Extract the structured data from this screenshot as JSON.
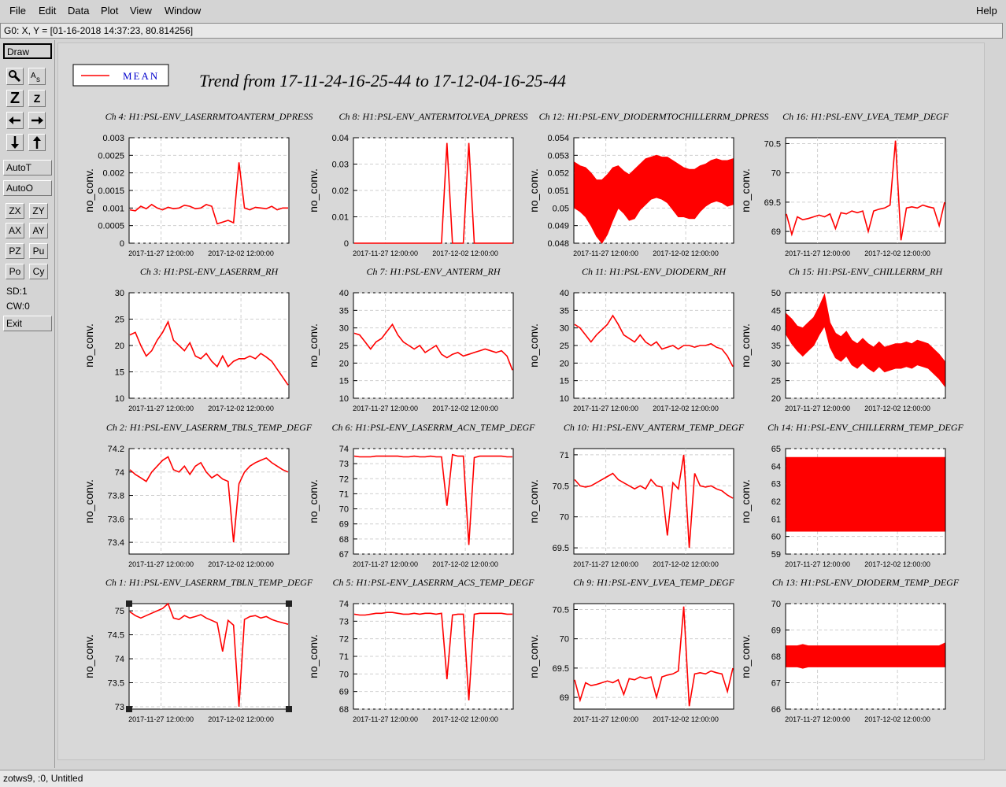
{
  "menu": {
    "file": "File",
    "edit": "Edit",
    "data": "Data",
    "plot": "Plot",
    "view": "View",
    "window": "Window",
    "help": "Help"
  },
  "coord_readout": "G0: X, Y = [01-16-2018 14:37:23, 80.814256]",
  "toolbar": {
    "draw": "Draw",
    "zoom_z_big": "Z",
    "zoom_z_small": "Z",
    "auto_t": "AutoT",
    "auto_o": "AutoO",
    "zx": "ZX",
    "zy": "ZY",
    "ax": "AX",
    "ay": "AY",
    "pz": "PZ",
    "pu": "Pu",
    "po": "Po",
    "cy": "Cy",
    "sd": "SD:1",
    "cw": "CW:0",
    "exit": "Exit"
  },
  "legend": {
    "label": "MEAN"
  },
  "main_title": "Trend from 17-11-24-16-25-44 to 17-12-04-16-25-44",
  "status": "zotws9, :0, Untitled",
  "colors": {
    "trace": "#ff0000",
    "grid": "#cfcfcf",
    "accent": "#0000cc"
  },
  "chart_data": [
    {
      "type": "line",
      "title": "Ch 4: H1:PSL-ENV_LASERRMTOANTERM_DPRESS",
      "ylabel": "no_conv.",
      "xticks": [
        "2017-11-27 12:00:00",
        "2017-12-02 12:00:00"
      ],
      "yticks": [
        "0",
        "0.0005",
        "0.001",
        "0.0015",
        "0.002",
        "0.0025",
        "0.003"
      ],
      "ylim": [
        0,
        0.003
      ],
      "series": [
        {
          "values": [
            0.00095,
            0.00092,
            0.00105,
            0.00098,
            0.0011,
            0.001,
            0.00095,
            0.00102,
            0.00098,
            0.001,
            0.00108,
            0.00105,
            0.00098,
            0.001,
            0.0011,
            0.00105,
            0.00055,
            0.0006,
            0.00065,
            0.00058,
            0.0023,
            0.001,
            0.00095,
            0.00102,
            0.001,
            0.00098,
            0.00105,
            0.00095,
            0.001,
            0.001
          ]
        }
      ]
    },
    {
      "type": "line",
      "title": "Ch 8: H1:PSL-ENV_ANTERMTOLVEA_DPRESS",
      "ylabel": "no_conv.",
      "xticks": [
        "2017-11-27 12:00:00",
        "2017-12-02 12:00:00"
      ],
      "yticks": [
        "0",
        "0.01",
        "0.02",
        "0.03",
        "0.04"
      ],
      "ylim": [
        0,
        0.04
      ],
      "series": [
        {
          "values": [
            0,
            0,
            0,
            0,
            0,
            0,
            0,
            0,
            0,
            0,
            0,
            0,
            0,
            0,
            0,
            0,
            0,
            0.038,
            0,
            0,
            0,
            0.038,
            0,
            0,
            0,
            0,
            0,
            0,
            0,
            0
          ]
        }
      ]
    },
    {
      "type": "line",
      "title": "Ch 12: H1:PSL-ENV_DIODERMTOCHILLERRM_DPRESS",
      "ylabel": "no_conv.",
      "xticks": [
        "2017-11-27 12:00:00",
        "2017-12-02 12:00:00"
      ],
      "yticks": [
        "0.048",
        "0.049",
        "0.05",
        "0.051",
        "0.052",
        "0.053",
        "0.054"
      ],
      "ylim": [
        0.048,
        0.054
      ],
      "band": true,
      "series": [
        {
          "values": [
            0.0513,
            0.0511,
            0.0509,
            0.0505,
            0.05,
            0.0498,
            0.0502,
            0.0508,
            0.0512,
            0.0509,
            0.0506,
            0.0508,
            0.0512,
            0.0515,
            0.0517,
            0.0518,
            0.0517,
            0.0516,
            0.0513,
            0.051,
            0.0509,
            0.0508,
            0.0508,
            0.0511,
            0.0513,
            0.0515,
            0.0516,
            0.0515,
            0.0514,
            0.0515
          ],
          "spread": [
            0.0013,
            0.0013,
            0.0014,
            0.0015,
            0.0016,
            0.0018,
            0.0017,
            0.0015,
            0.0012,
            0.0012,
            0.0013,
            0.0014,
            0.0013,
            0.0013,
            0.0012,
            0.0012,
            0.0012,
            0.0013,
            0.0014,
            0.0015,
            0.0014,
            0.0014,
            0.0014,
            0.0013,
            0.0012,
            0.0012,
            0.0012,
            0.0012,
            0.0013,
            0.0013
          ]
        }
      ]
    },
    {
      "type": "line",
      "title": "Ch 16: H1:PSL-ENV_LVEA_TEMP_DEGF",
      "ylabel": "no_conv.",
      "xticks": [
        "2017-11-27 12:00:00",
        "2017-12-02 12:00:00"
      ],
      "yticks": [
        "69",
        "69.5",
        "70",
        "70.5"
      ],
      "ylim": [
        68.8,
        70.6
      ],
      "series": [
        {
          "values": [
            69.3,
            68.95,
            69.25,
            69.2,
            69.22,
            69.25,
            69.28,
            69.25,
            69.3,
            69.05,
            69.32,
            69.3,
            69.35,
            69.32,
            69.35,
            69.0,
            69.35,
            69.38,
            69.4,
            69.45,
            70.55,
            68.85,
            69.4,
            69.42,
            69.4,
            69.45,
            69.42,
            69.4,
            69.1,
            69.5
          ]
        }
      ]
    },
    {
      "type": "line",
      "title": "Ch 3: H1:PSL-ENV_LASERRM_RH",
      "ylabel": "no_conv.",
      "xticks": [
        "2017-11-27 12:00:00",
        "2017-12-02 12:00:00"
      ],
      "yticks": [
        "10",
        "15",
        "20",
        "25",
        "30"
      ],
      "ylim": [
        10,
        30
      ],
      "series": [
        {
          "values": [
            22,
            22.5,
            20,
            18,
            19,
            21,
            22.5,
            24.5,
            21,
            20,
            19,
            20.5,
            18,
            17.5,
            18.5,
            17,
            16,
            18,
            16,
            17,
            17.5,
            17.5,
            18,
            17.5,
            18.5,
            17.8,
            17,
            15.5,
            14,
            12.5
          ]
        }
      ]
    },
    {
      "type": "line",
      "title": "Ch 7: H1:PSL-ENV_ANTERM_RH",
      "ylabel": "no_conv.",
      "xticks": [
        "2017-11-27 12:00:00",
        "2017-12-02 12:00:00"
      ],
      "yticks": [
        "10",
        "15",
        "20",
        "25",
        "30",
        "35",
        "40"
      ],
      "ylim": [
        10,
        40
      ],
      "series": [
        {
          "values": [
            28.5,
            28,
            26,
            24,
            26,
            27,
            29,
            31,
            28,
            26,
            25,
            24,
            25,
            23,
            24,
            25,
            22.5,
            21.5,
            22.5,
            23,
            22,
            22.5,
            23,
            23.5,
            24,
            23.5,
            23,
            23.5,
            22,
            18
          ]
        }
      ]
    },
    {
      "type": "line",
      "title": "Ch 11: H1:PSL-ENV_DIODERM_RH",
      "ylabel": "no_conv.",
      "xticks": [
        "2017-11-27 12:00:00",
        "2017-12-02 12:00:00"
      ],
      "yticks": [
        "10",
        "15",
        "20",
        "25",
        "30",
        "35",
        "40"
      ],
      "ylim": [
        10,
        40
      ],
      "series": [
        {
          "values": [
            31,
            30,
            28,
            26,
            28,
            29.5,
            31,
            33.5,
            31,
            28,
            27,
            26,
            28,
            26,
            25,
            26,
            24,
            24.5,
            25,
            24,
            25,
            25,
            24.5,
            25,
            25,
            25.5,
            24.5,
            24,
            22,
            19
          ]
        }
      ]
    },
    {
      "type": "line",
      "title": "Ch 15: H1:PSL-ENV_CHILLERRM_RH",
      "ylabel": "no_conv.",
      "xticks": [
        "2017-11-27 12:00:00",
        "2017-12-02 12:00:00"
      ],
      "yticks": [
        "20",
        "25",
        "30",
        "35",
        "40",
        "45",
        "50"
      ],
      "ylim": [
        20,
        50
      ],
      "band": true,
      "series": [
        {
          "values": [
            41,
            39,
            37,
            36,
            37.5,
            39,
            42,
            45,
            38,
            35,
            34,
            35.5,
            33,
            32,
            33.5,
            32,
            31,
            32.5,
            31,
            31.5,
            32,
            32,
            32.5,
            32,
            33,
            32.5,
            32,
            30.5,
            29,
            27
          ],
          "spread": [
            3,
            3.5,
            3.5,
            4,
            4,
            4,
            4,
            4.5,
            3.5,
            3.5,
            3.5,
            3.5,
            3.5,
            3.5,
            3.5,
            3.5,
            3.5,
            3.5,
            3.5,
            3.5,
            3.5,
            3.5,
            3.5,
            3.5,
            3.5,
            3.5,
            3.5,
            3.5,
            3.5,
            3.5
          ]
        }
      ]
    },
    {
      "type": "line",
      "title": "Ch 2: H1:PSL-ENV_LASERRM_TBLS_TEMP_DEGF",
      "ylabel": "no_conv.",
      "xticks": [
        "2017-11-27 12:00:00",
        "2017-12-02 12:00:00"
      ],
      "yticks": [
        "73.4",
        "73.6",
        "73.8",
        "74",
        "74.2"
      ],
      "ylim": [
        73.3,
        74.2
      ],
      "series": [
        {
          "values": [
            74.02,
            73.98,
            73.95,
            73.92,
            74.0,
            74.05,
            74.1,
            74.13,
            74.02,
            74.0,
            74.05,
            73.98,
            74.05,
            74.08,
            74.0,
            73.95,
            73.98,
            73.94,
            73.92,
            73.4,
            73.9,
            74.0,
            74.05,
            74.08,
            74.1,
            74.12,
            74.08,
            74.05,
            74.02,
            74.0
          ]
        }
      ]
    },
    {
      "type": "line",
      "title": "Ch 6: H1:PSL-ENV_LASERRM_ACN_TEMP_DEGF",
      "ylabel": "no_conv.",
      "xticks": [
        "2017-11-27 12:00:00",
        "2017-12-02 12:00:00"
      ],
      "yticks": [
        "67",
        "68",
        "69",
        "70",
        "71",
        "72",
        "73",
        "74"
      ],
      "ylim": [
        67,
        74
      ],
      "series": [
        {
          "values": [
            73.5,
            73.45,
            73.45,
            73.45,
            73.5,
            73.5,
            73.5,
            73.5,
            73.5,
            73.45,
            73.45,
            73.5,
            73.45,
            73.45,
            73.5,
            73.45,
            73.45,
            70.2,
            73.6,
            73.5,
            73.5,
            67.6,
            73.4,
            73.5,
            73.5,
            73.5,
            73.5,
            73.5,
            73.45,
            73.45
          ]
        }
      ]
    },
    {
      "type": "line",
      "title": "Ch 10: H1:PSL-ENV_ANTERM_TEMP_DEGF",
      "ylabel": "no_conv.",
      "xticks": [
        "2017-11-27 12:00:00",
        "2017-12-02 12:00:00"
      ],
      "yticks": [
        "69.5",
        "70",
        "70.5",
        "71"
      ],
      "ylim": [
        69.4,
        71.1
      ],
      "series": [
        {
          "values": [
            70.6,
            70.5,
            70.48,
            70.5,
            70.55,
            70.6,
            70.65,
            70.7,
            70.6,
            70.55,
            70.5,
            70.45,
            70.5,
            70.45,
            70.6,
            70.5,
            70.48,
            69.7,
            70.55,
            70.45,
            71.0,
            69.5,
            70.7,
            70.5,
            70.48,
            70.5,
            70.45,
            70.42,
            70.35,
            70.3
          ]
        }
      ]
    },
    {
      "type": "line",
      "title": "Ch 14: H1:PSL-ENV_CHILLERRM_TEMP_DEGF",
      "ylabel": "no_conv.",
      "xticks": [
        "2017-11-27 12:00:00",
        "2017-12-02 12:00:00"
      ],
      "yticks": [
        "59",
        "60",
        "61",
        "62",
        "63",
        "64",
        "65"
      ],
      "ylim": [
        59,
        65
      ],
      "band": true,
      "series": [
        {
          "values": [
            62.4,
            62.4,
            62.4,
            62.4,
            62.4,
            62.4,
            62.4,
            62.4,
            62.4,
            62.4,
            62.4,
            62.4,
            62.4,
            62.4,
            62.4,
            62.4,
            62.4,
            62.4,
            62.4,
            62.4,
            62.4,
            62.4,
            62.4,
            62.4,
            62.4,
            62.4,
            62.4,
            62.4,
            62.4,
            62.4
          ],
          "spread": [
            2.1,
            2.1,
            2.1,
            2.1,
            2.1,
            2.1,
            2.1,
            2.1,
            2.1,
            2.1,
            2.1,
            2.1,
            2.1,
            2.1,
            2.1,
            2.1,
            2.1,
            2.1,
            2.1,
            2.1,
            2.1,
            2.1,
            2.1,
            2.1,
            2.1,
            2.1,
            2.1,
            2.1,
            2.1,
            2.1
          ]
        }
      ]
    },
    {
      "type": "line",
      "title": "Ch 1: H1:PSL-ENV_LASERRM_TBLN_TEMP_DEGF",
      "ylabel": "no_conv.",
      "xticks": [
        "2017-11-27 12:00:00",
        "2017-12-02 12:00:00"
      ],
      "yticks": [
        "73",
        "73.5",
        "74",
        "74.5",
        "75"
      ],
      "ylim": [
        72.95,
        75.15
      ],
      "series": [
        {
          "values": [
            74.98,
            74.9,
            74.85,
            74.9,
            74.95,
            75.0,
            75.05,
            75.15,
            74.85,
            74.82,
            74.9,
            74.85,
            74.88,
            74.92,
            74.85,
            74.8,
            74.75,
            74.15,
            74.8,
            74.7,
            73.0,
            74.82,
            74.88,
            74.9,
            74.85,
            74.88,
            74.82,
            74.78,
            74.75,
            74.72
          ]
        }
      ]
    },
    {
      "type": "line",
      "title": "Ch 5: H1:PSL-ENV_LASERRM_ACS_TEMP_DEGF",
      "ylabel": "no_conv.",
      "xticks": [
        "2017-11-27 12:00:00",
        "2017-12-02 12:00:00"
      ],
      "yticks": [
        "68",
        "69",
        "70",
        "71",
        "72",
        "73",
        "74"
      ],
      "ylim": [
        68,
        74
      ],
      "series": [
        {
          "values": [
            73.4,
            73.35,
            73.35,
            73.4,
            73.45,
            73.45,
            73.5,
            73.5,
            73.45,
            73.4,
            73.4,
            73.45,
            73.4,
            73.45,
            73.45,
            73.4,
            73.45,
            69.7,
            73.35,
            73.4,
            73.4,
            68.5,
            73.4,
            73.45,
            73.45,
            73.45,
            73.45,
            73.45,
            73.4,
            73.4
          ]
        }
      ]
    },
    {
      "type": "line",
      "title": "Ch 9: H1:PSL-ENV_LVEA_TEMP_DEGF",
      "ylabel": "no_conv.",
      "xticks": [
        "2017-11-27 12:00:00",
        "2017-12-02 12:00:00"
      ],
      "yticks": [
        "69",
        "69.5",
        "70",
        "70.5"
      ],
      "ylim": [
        68.8,
        70.6
      ],
      "series": [
        {
          "values": [
            69.3,
            68.95,
            69.25,
            69.2,
            69.22,
            69.25,
            69.28,
            69.25,
            69.3,
            69.05,
            69.32,
            69.3,
            69.35,
            69.32,
            69.35,
            69.0,
            69.35,
            69.38,
            69.4,
            69.45,
            70.55,
            68.85,
            69.4,
            69.42,
            69.4,
            69.45,
            69.42,
            69.4,
            69.1,
            69.5
          ]
        }
      ]
    },
    {
      "type": "line",
      "title": "Ch 13: H1:PSL-ENV_DIODERM_TEMP_DEGF",
      "ylabel": "no_conv.",
      "xticks": [
        "2017-11-27 12:00:00",
        "2017-12-02 12:00:00"
      ],
      "yticks": [
        "66",
        "67",
        "68",
        "69",
        "70"
      ],
      "ylim": [
        66,
        70
      ],
      "band": true,
      "series": [
        {
          "values": [
            68.0,
            68.0,
            68.0,
            68.0,
            68.0,
            68.0,
            68.0,
            68.0,
            68.0,
            68.0,
            68.0,
            68.0,
            68.0,
            68.0,
            68.0,
            68.0,
            68.0,
            68.0,
            68.0,
            68.0,
            68.0,
            68.0,
            68.0,
            68.0,
            68.0,
            68.0,
            68.0,
            68.0,
            68.0,
            68.05
          ],
          "spread": [
            0.4,
            0.4,
            0.4,
            0.45,
            0.4,
            0.4,
            0.4,
            0.4,
            0.4,
            0.4,
            0.4,
            0.4,
            0.4,
            0.4,
            0.4,
            0.4,
            0.4,
            0.4,
            0.4,
            0.4,
            0.4,
            0.4,
            0.4,
            0.4,
            0.4,
            0.4,
            0.4,
            0.4,
            0.4,
            0.45
          ]
        }
      ]
    }
  ]
}
